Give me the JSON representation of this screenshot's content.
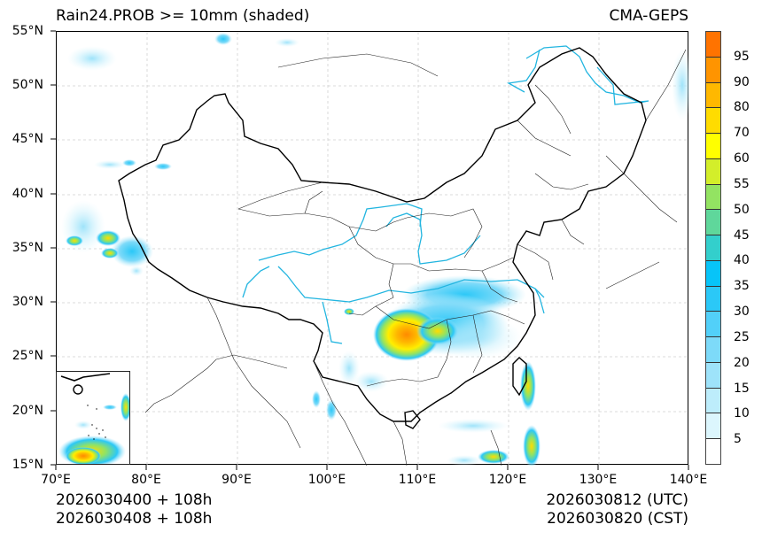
{
  "header": {
    "title_left": "Rain24.PROB >= 10mm (shaded)",
    "title_right": "CMA-GEPS"
  },
  "axes": {
    "y_ticks": [
      {
        "label": "55°N",
        "lat": 55
      },
      {
        "label": "50°N",
        "lat": 50
      },
      {
        "label": "45°N",
        "lat": 45
      },
      {
        "label": "40°N",
        "lat": 40
      },
      {
        "label": "35°N",
        "lat": 35
      },
      {
        "label": "30°N",
        "lat": 30
      },
      {
        "label": "25°N",
        "lat": 25
      },
      {
        "label": "20°N",
        "lat": 20
      },
      {
        "label": "15°N",
        "lat": 15
      }
    ],
    "x_ticks": [
      {
        "label": "70°E",
        "lon": 70
      },
      {
        "label": "80°E",
        "lon": 80
      },
      {
        "label": "90°E",
        "lon": 90
      },
      {
        "label": "100°E",
        "lon": 100
      },
      {
        "label": "110°E",
        "lon": 110
      },
      {
        "label": "120°E",
        "lon": 120
      },
      {
        "label": "130°E",
        "lon": 130
      },
      {
        "label": "140°E",
        "lon": 140
      }
    ],
    "lon_range": [
      70,
      140
    ],
    "lat_range": [
      15,
      55
    ]
  },
  "footer": {
    "left_line1": "2026030400 + 108h",
    "left_line2": "2026030408 + 108h",
    "right_line1": "2026030812 (UTC)",
    "right_line2": "2026030820 (CST)"
  },
  "colorbar": {
    "labels": [
      "5",
      "10",
      "15",
      "20",
      "25",
      "30",
      "35",
      "40",
      "45",
      "50",
      "55",
      "60",
      "70",
      "80",
      "90",
      "95"
    ],
    "colors": [
      "#ffffff",
      "#dcf6fd",
      "#bdedfb",
      "#9ee3fa",
      "#7ddaf9",
      "#52d0f9",
      "#2bc8f7",
      "#07c4f8",
      "#33cfcc",
      "#5fd79b",
      "#93e362",
      "#d3ee2a",
      "#ffff00",
      "#ffdc00",
      "#ffb800",
      "#ff9400",
      "#ff7300"
    ]
  },
  "map": {
    "river_color": "#22b5e0",
    "border_color": "#000000",
    "gridline_color": "#cccccc"
  }
}
